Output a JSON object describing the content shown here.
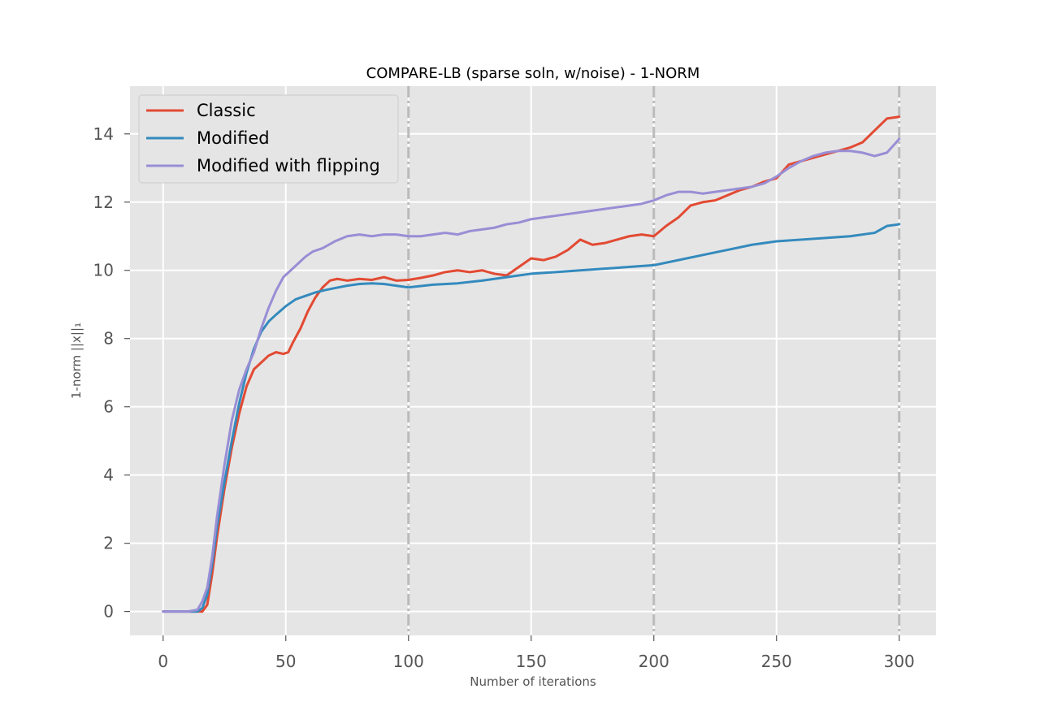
{
  "chart_data": {
    "type": "line",
    "title": "COMPARE-LB (sparse soln, w/noise) - 1-NORM",
    "xlabel": "Number of iterations",
    "ylabel": "1-norm ||x||₁",
    "xlim": [
      -13.5,
      315
    ],
    "ylim": [
      -0.7,
      15.4
    ],
    "xticks": [
      0,
      50,
      100,
      150,
      200,
      250,
      300
    ],
    "yticks": [
      0,
      2,
      4,
      6,
      8,
      10,
      12,
      14
    ],
    "grid": true,
    "legend_position": "top-left",
    "vlines": [
      100,
      200,
      300
    ],
    "series": [
      {
        "name": "Classic",
        "color": "#e24a33",
        "x": [
          0,
          10,
          16,
          18,
          20,
          22,
          25,
          28,
          31,
          34,
          37,
          40,
          43,
          46,
          49,
          51,
          53,
          56,
          59,
          62,
          65,
          68,
          71,
          75,
          80,
          85,
          90,
          95,
          100,
          105,
          110,
          115,
          120,
          125,
          130,
          135,
          140,
          145,
          150,
          155,
          160,
          165,
          170,
          175,
          180,
          185,
          190,
          195,
          200,
          205,
          210,
          215,
          220,
          225,
          230,
          235,
          240,
          245,
          250,
          255,
          260,
          265,
          270,
          275,
          280,
          285,
          290,
          295,
          300
        ],
        "y": [
          0,
          0,
          0,
          0.2,
          1.1,
          2.2,
          3.6,
          4.8,
          5.8,
          6.6,
          7.1,
          7.3,
          7.5,
          7.6,
          7.55,
          7.6,
          7.9,
          8.3,
          8.8,
          9.2,
          9.5,
          9.7,
          9.75,
          9.7,
          9.75,
          9.72,
          9.8,
          9.7,
          9.72,
          9.78,
          9.85,
          9.95,
          10.0,
          9.95,
          10.0,
          9.9,
          9.85,
          10.1,
          10.35,
          10.3,
          10.4,
          10.6,
          10.9,
          10.75,
          10.8,
          10.9,
          11.0,
          11.05,
          11.0,
          11.3,
          11.55,
          11.9,
          12.0,
          12.05,
          12.2,
          12.35,
          12.45,
          12.6,
          12.7,
          13.1,
          13.2,
          13.3,
          13.4,
          13.5,
          13.6,
          13.75,
          14.1,
          14.45,
          14.5
        ]
      },
      {
        "name": "Modified",
        "color": "#348abd",
        "x": [
          0,
          10,
          14,
          16,
          18,
          20,
          22,
          25,
          28,
          31,
          34,
          37,
          40,
          43,
          46,
          50,
          54,
          58,
          62,
          66,
          70,
          75,
          80,
          85,
          90,
          95,
          100,
          110,
          120,
          130,
          140,
          150,
          160,
          170,
          180,
          190,
          200,
          210,
          220,
          230,
          240,
          250,
          260,
          270,
          280,
          290,
          295,
          300
        ],
        "y": [
          0,
          0,
          0,
          0.1,
          0.5,
          1.4,
          2.5,
          3.8,
          5.0,
          6.1,
          7.0,
          7.7,
          8.2,
          8.5,
          8.7,
          8.95,
          9.15,
          9.25,
          9.35,
          9.42,
          9.48,
          9.55,
          9.6,
          9.62,
          9.6,
          9.55,
          9.5,
          9.58,
          9.62,
          9.7,
          9.8,
          9.9,
          9.95,
          10.0,
          10.05,
          10.1,
          10.15,
          10.3,
          10.45,
          10.6,
          10.75,
          10.85,
          10.9,
          10.95,
          11.0,
          11.1,
          11.3,
          11.35
        ]
      },
      {
        "name": "Modified with flipping",
        "color": "#988ed5",
        "x": [
          0,
          10,
          14,
          16,
          18,
          20,
          22,
          25,
          28,
          31,
          34,
          37,
          40,
          43,
          46,
          49,
          52,
          55,
          58,
          61,
          65,
          70,
          75,
          80,
          85,
          90,
          95,
          100,
          105,
          110,
          115,
          120,
          125,
          130,
          135,
          140,
          145,
          150,
          155,
          160,
          165,
          170,
          175,
          180,
          185,
          190,
          195,
          200,
          205,
          210,
          215,
          220,
          225,
          230,
          235,
          240,
          245,
          250,
          255,
          260,
          265,
          270,
          275,
          280,
          285,
          290,
          295,
          300
        ],
        "y": [
          0,
          0,
          0.05,
          0.3,
          0.7,
          1.6,
          2.8,
          4.3,
          5.6,
          6.5,
          7.1,
          7.6,
          8.3,
          8.9,
          9.4,
          9.8,
          10.0,
          10.2,
          10.4,
          10.55,
          10.65,
          10.85,
          11.0,
          11.05,
          11.0,
          11.05,
          11.05,
          11.0,
          11.0,
          11.05,
          11.1,
          11.05,
          11.15,
          11.2,
          11.25,
          11.35,
          11.4,
          11.5,
          11.55,
          11.6,
          11.65,
          11.7,
          11.75,
          11.8,
          11.85,
          11.9,
          11.95,
          12.05,
          12.2,
          12.3,
          12.3,
          12.25,
          12.3,
          12.35,
          12.4,
          12.45,
          12.55,
          12.75,
          13.0,
          13.2,
          13.35,
          13.45,
          13.5,
          13.5,
          13.45,
          13.35,
          13.45,
          13.85
        ]
      }
    ]
  }
}
